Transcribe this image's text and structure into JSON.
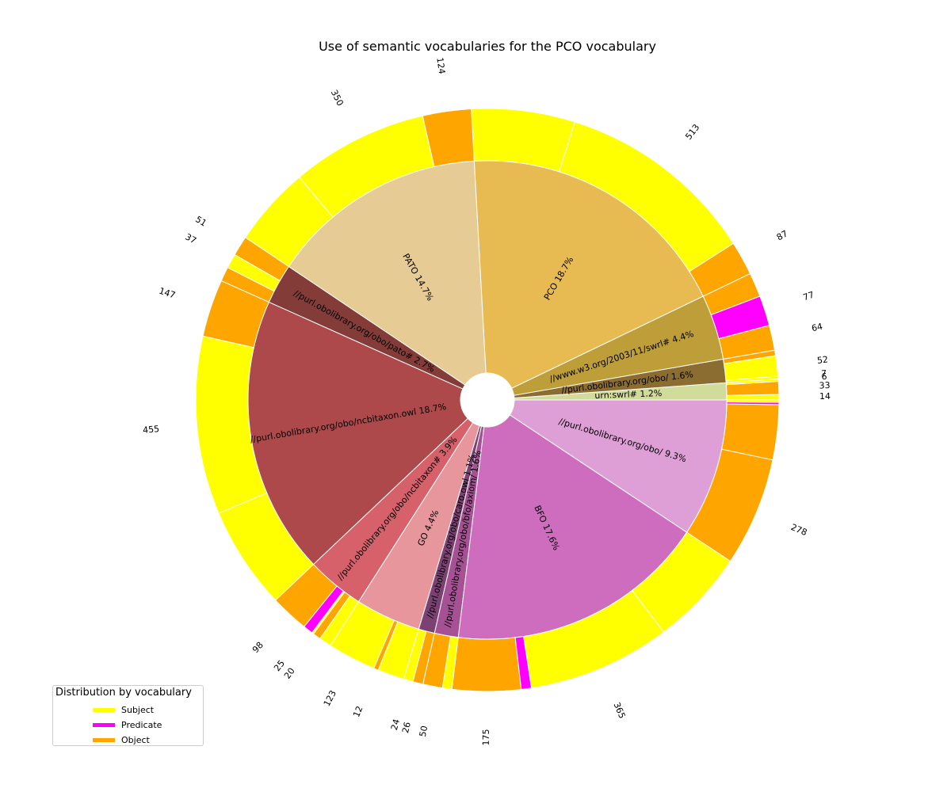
{
  "chart_data": {
    "type": "pie",
    "subtype": "nested-donut",
    "title": "Use of semantic vocabularies for the PCO vocabulary",
    "inner": [
      {
        "label": "urn:swrl#",
        "pct": "1.2%",
        "total": 53,
        "color": "#d2dc9a"
      },
      {
        "label": "//purl.obolibrary.org/obo/",
        "pct": "1.6%",
        "total": 73,
        "color": "#8c6d31"
      },
      {
        "label": "//www.w3.org/2003/11/swrl#",
        "pct": "4.4%",
        "total": 203,
        "color": "#bd9e39"
      },
      {
        "label": "PCO",
        "pct": "18.7%",
        "total": 864,
        "color": "#e7ba52"
      },
      {
        "label": "PATO",
        "pct": "14.7%",
        "total": 678,
        "color": "#e7cb94"
      },
      {
        "label": "//purl.obolibrary.org/obo/pato#",
        "pct": "2.7%",
        "total": 125,
        "color": "#843c39"
      },
      {
        "label": "//purl.obolibrary.org/obo/ncbitaxon.owl",
        "pct": "18.7%",
        "total": 865,
        "color": "#ad494a"
      },
      {
        "label": "//purl.obolibrary.org/obo/ncbitaxon#",
        "pct": "3.9%",
        "total": 180,
        "color": "#d6616b"
      },
      {
        "label": "GO",
        "pct": "4.4%",
        "total": 203,
        "color": "#e7969c"
      },
      {
        "label": "//purl.obolibrary.org/obo/caro.owl",
        "pct": "1.1%",
        "total": 50,
        "color": "#7b4173"
      },
      {
        "label": "//purl.obolibrary.org/obo/bfo/axiom/",
        "pct": "1.6%",
        "total": 74,
        "color": "#a55194"
      },
      {
        "label": "BFO",
        "pct": "17.6%",
        "total": 812,
        "color": "#ce6dbd"
      },
      {
        "label": "//purl.obolibrary.org/obo/",
        "pct": "9.3%",
        "total": 430,
        "color": "#de9ed6"
      }
    ],
    "outer": [
      {
        "vocab": "urn:swrl#",
        "role": "Subject",
        "value": 14
      },
      {
        "vocab": "urn:swrl#",
        "role": "Object",
        "value": 33
      },
      {
        "vocab": "urn:swrl#",
        "role": "Subject",
        "value": 6
      },
      {
        "vocab": "//purl.obolibrary.org/obo/",
        "role": "Subject",
        "value": 7
      },
      {
        "vocab": "//purl.obolibrary.org/obo/",
        "role": "Subject",
        "value": 52
      },
      {
        "vocab": "//purl.obolibrary.org/obo/",
        "role": "Object",
        "value": 14
      },
      {
        "vocab": "//www.w3.org/2003/11/swrl#",
        "role": "Object",
        "value": 64
      },
      {
        "vocab": "//www.w3.org/2003/11/swrl#",
        "role": "Predicate",
        "value": 77
      },
      {
        "vocab": "//www.w3.org/2003/11/swrl#",
        "role": "Object",
        "value": 62
      },
      {
        "vocab": "PCO",
        "role": "Object",
        "value": 87
      },
      {
        "vocab": "PCO",
        "role": "Subject",
        "value": 513
      },
      {
        "vocab": "PCO",
        "role": "Subject",
        "value": 264
      },
      {
        "vocab": "PATO",
        "role": "Object",
        "value": 124
      },
      {
        "vocab": "PATO",
        "role": "Subject",
        "value": 350
      },
      {
        "vocab": "PATO",
        "role": "Subject",
        "value": 204
      },
      {
        "vocab": "//purl.obolibrary.org/obo/pato#",
        "role": "Object",
        "value": 51
      },
      {
        "vocab": "//purl.obolibrary.org/obo/pato#",
        "role": "Subject",
        "value": 37
      },
      {
        "vocab": "//purl.obolibrary.org/obo/pato#",
        "role": "Object",
        "value": 37
      },
      {
        "vocab": "//purl.obolibrary.org/obo/ncbitaxon.owl",
        "role": "Object",
        "value": 147
      },
      {
        "vocab": "//purl.obolibrary.org/obo/ncbitaxon.owl",
        "role": "Subject",
        "value": 455
      },
      {
        "vocab": "//purl.obolibrary.org/obo/ncbitaxon.owl",
        "role": "Subject",
        "value": 263
      },
      {
        "vocab": "//purl.obolibrary.org/obo/ncbitaxon#",
        "role": "Object",
        "value": 98
      },
      {
        "vocab": "//purl.obolibrary.org/obo/ncbitaxon#",
        "role": "Predicate",
        "value": 25
      },
      {
        "vocab": "//purl.obolibrary.org/obo/ncbitaxon#",
        "role": "Subject",
        "value": 5
      },
      {
        "vocab": "//purl.obolibrary.org/obo/ncbitaxon#",
        "role": "Object",
        "value": 20
      },
      {
        "vocab": "//purl.obolibrary.org/obo/ncbitaxon#",
        "role": "Subject",
        "value": 32
      },
      {
        "vocab": "GO",
        "role": "Subject",
        "value": 123
      },
      {
        "vocab": "GO",
        "role": "Object",
        "value": 12
      },
      {
        "vocab": "GO",
        "role": "Subject",
        "value": 68
      },
      {
        "vocab": "//purl.obolibrary.org/obo/caro.owl",
        "role": "Subject",
        "value": 24
      },
      {
        "vocab": "//purl.obolibrary.org/obo/caro.owl",
        "role": "Object",
        "value": 26
      },
      {
        "vocab": "//purl.obolibrary.org/obo/bfo/axiom/",
        "role": "Object",
        "value": 50
      },
      {
        "vocab": "//purl.obolibrary.org/obo/bfo/axiom/",
        "role": "Subject",
        "value": 24
      },
      {
        "vocab": "BFO",
        "role": "Object",
        "value": 175
      },
      {
        "vocab": "BFO",
        "role": "Predicate",
        "value": 26
      },
      {
        "vocab": "BFO",
        "role": "Subject",
        "value": 365
      },
      {
        "vocab": "BFO",
        "role": "Subject",
        "value": 246
      },
      {
        "vocab": "//purl.obolibrary.org/obo/",
        "role": "Object",
        "value": 278
      },
      {
        "vocab": "//purl.obolibrary.org/obo/",
        "role": "Object",
        "value": 140
      },
      {
        "vocab": "//purl.obolibrary.org/obo/",
        "role": "Predicate",
        "value": 6
      },
      {
        "vocab": "//purl.obolibrary.org/obo/",
        "role": "Subject",
        "value": 6
      }
    ],
    "outer_value_labels": [
      "6",
      "14",
      "33",
      "7",
      "52",
      "64",
      "77",
      "87",
      "513",
      "124",
      "350",
      "51",
      "37",
      "147",
      "455",
      "98",
      "25",
      "20",
      "123",
      "12",
      "24",
      "50",
      "175",
      "26",
      "365",
      "278"
    ],
    "role_colors": {
      "Subject": "#ffff00",
      "Predicate": "#ff00ff",
      "Object": "#ffa500"
    },
    "legend": {
      "title": "Distribution by vocabulary",
      "placement": "lower-left",
      "entries": [
        {
          "label": "Subject",
          "color": "#ffff00"
        },
        {
          "label": "Predicate",
          "color": "#ff00ff"
        },
        {
          "label": "Object",
          "color": "#ffa500"
        }
      ]
    }
  }
}
